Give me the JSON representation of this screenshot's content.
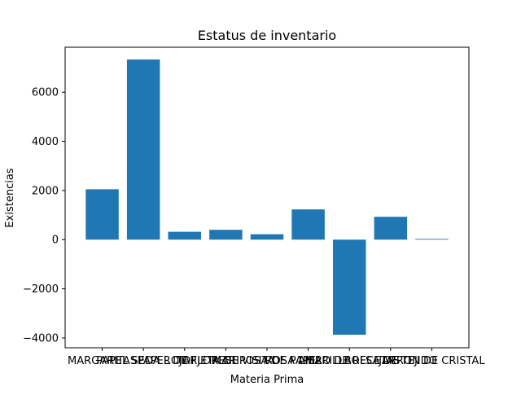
{
  "chart_data": {
    "type": "bar",
    "title": "Estatus de inventario",
    "xlabel": "Materia Prima",
    "ylabel": "Existencias",
    "categories": [
      "MARGARITAS",
      "PAPEL SEDA ROJO",
      "PAPEL DE FLORES",
      "TARJETA DE VISITA",
      "MARIPOSA DE PAPEL",
      "ROSA AMARILLA",
      "LIBRO DE RECETAS",
      "BOLSA DE TEJIDO",
      "JARRON DE CRISTAL"
    ],
    "values": [
      2050,
      7330,
      320,
      400,
      220,
      1230,
      -3870,
      930,
      30
    ],
    "ylim": [
      -4400,
      7830
    ],
    "yticks": [
      -4000,
      -2000,
      0,
      2000,
      4000,
      6000
    ],
    "ytick_labels": [
      "−4000",
      "−2000",
      "0",
      "2000",
      "4000",
      "6000"
    ],
    "bar_color": "#1f77b4",
    "grid": false,
    "legend": "none"
  }
}
